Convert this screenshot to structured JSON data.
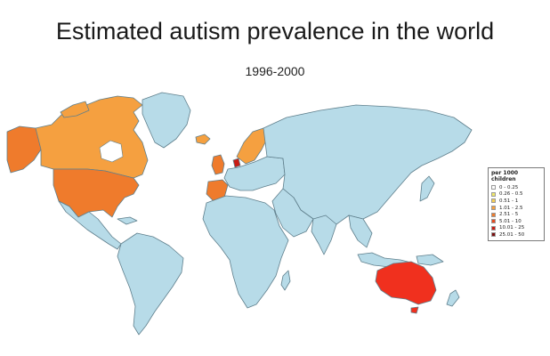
{
  "title": "Estimated autism prevalence in the world",
  "subtitle": "1996-2000",
  "colors": {
    "base": "#b7dbe8",
    "border": "#5f7f8c",
    "orange_light": "#f5a040",
    "orange": "#ef7b2c",
    "red": "#f0301e"
  },
  "legend": {
    "title": "per 1000 children",
    "items": [
      {
        "label": "0 - 0.25",
        "color": "#ffffff"
      },
      {
        "label": "0.26 - 0.5",
        "color": "#f1e86a"
      },
      {
        "label": "0.51 - 1",
        "color": "#f5cf55"
      },
      {
        "label": "1.01 - 2.5",
        "color": "#f5a040"
      },
      {
        "label": "2.51 - 5",
        "color": "#ef7b2c"
      },
      {
        "label": "5.01 - 10",
        "color": "#e84b1f"
      },
      {
        "label": "10.01 - 25",
        "color": "#c81c14"
      },
      {
        "label": "25.01 - 50",
        "color": "#7a0d0d"
      }
    ]
  }
}
